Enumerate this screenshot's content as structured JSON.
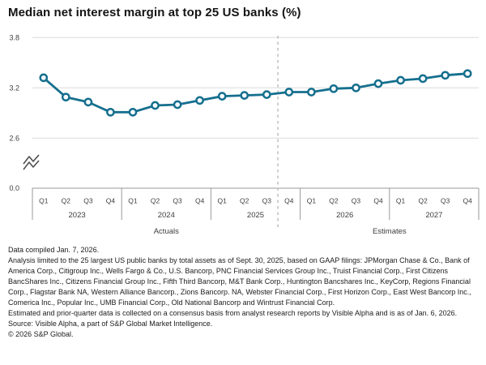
{
  "chart_data": {
    "type": "line",
    "title": "Median net interest margin at top 25 US banks (%)",
    "unit": "%",
    "series": [
      {
        "name": "Median net interest margin",
        "values": [
          3.32,
          3.09,
          3.03,
          2.91,
          2.91,
          2.99,
          3.0,
          3.05,
          3.1,
          3.11,
          3.12,
          3.15,
          3.15,
          3.19,
          3.2,
          3.25,
          3.29,
          3.31,
          3.35,
          3.37
        ]
      }
    ],
    "x_groups": [
      {
        "year": "2023",
        "quarters": [
          "Q1",
          "Q2",
          "Q3",
          "Q4"
        ]
      },
      {
        "year": "2024",
        "quarters": [
          "Q1",
          "Q2",
          "Q3",
          "Q4"
        ]
      },
      {
        "year": "2025",
        "quarters": [
          "Q1",
          "Q2",
          "Q3",
          "Q4"
        ]
      },
      {
        "year": "2026",
        "quarters": [
          "Q1",
          "Q2",
          "Q3",
          "Q4"
        ]
      },
      {
        "year": "2027",
        "quarters": [
          "Q1",
          "Q2",
          "Q3",
          "Q4"
        ]
      }
    ],
    "actuals_last_index": 10,
    "section_labels": {
      "actuals": "Actuals",
      "estimates": "Estimates"
    },
    "y_ticks": [
      3.8,
      3.2,
      2.6
    ],
    "y_tick_labels": [
      "3.8",
      "3.2",
      "2.6"
    ],
    "y_baseline_label": "0.0",
    "axis_break": true,
    "ylim": [
      2.6,
      3.8
    ],
    "grid": true,
    "legend": "none",
    "line_color": "#156f8e",
    "grid_color": "#dcdcdc",
    "axis_color": "#999999",
    "divider_color": "#b9b9b9",
    "label_color": "#3d3d3d"
  },
  "footnotes": [
    "Data compiled Jan. 7, 2026.",
    "Analysis limited to the 25 largest US public banks by total assets as of Sept. 30, 2025, based on GAAP filings: JPMorgan Chase & Co., Bank of America Corp., Citigroup Inc., Wells Fargo & Co., U.S. Bancorp, PNC Financial Services Group Inc., Truist Financial Corp., First Citizens BancShares Inc., Citizens Financial Group Inc., Fifth Third Bancorp, M&T Bank Corp., Huntington Bancshares Inc., KeyCorp, Regions Financial Corp., Flagstar Bank NA, Western Alliance Bancorp., Zions Bancorp. NA, Webster Financial Corp., First Horizon Corp., East West Bancorp Inc., Comerica Inc., Popular Inc., UMB Financial Corp., Old National Bancorp and Wintrust Financial Corp.",
    "Estimated and prior-quarter data is collected on a consensus basis from analyst research reports by Visible Alpha and is as of Jan. 6, 2026.",
    "Source: Visible Alpha, a part of S&P Global Market Intelligence.",
    "© 2026 S&P Global."
  ]
}
